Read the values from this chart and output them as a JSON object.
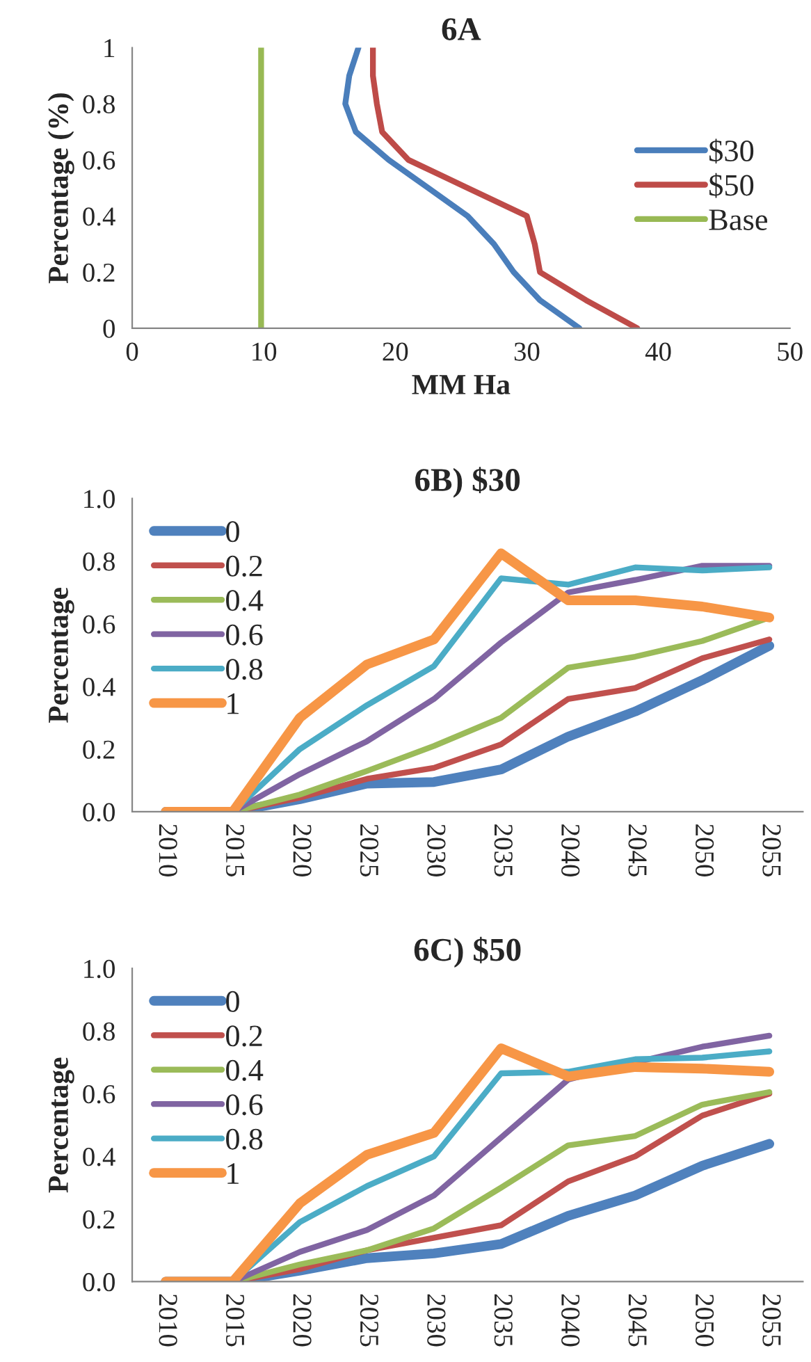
{
  "chart_data": [
    {
      "type": "line",
      "title": "6A",
      "xlabel": "MM Ha",
      "ylabel": "Percentage (%)",
      "xlim": [
        0,
        50
      ],
      "xticks": [
        0,
        10,
        20,
        30,
        40,
        50
      ],
      "ylim": [
        0,
        1
      ],
      "yticks": [
        0,
        0.2,
        0.4,
        0.6,
        0.8,
        1
      ],
      "grid": false,
      "legend": "right",
      "series": [
        {
          "name": "$30",
          "color": "#4a7ebb",
          "x": [
            34,
            31,
            29,
            27.5,
            25.5,
            22.5,
            19.5,
            17,
            16.2,
            16.5,
            17.2
          ],
          "values": [
            0,
            0.1,
            0.2,
            0.3,
            0.4,
            0.5,
            0.6,
            0.7,
            0.8,
            0.9,
            1
          ]
        },
        {
          "name": "$50",
          "color": "#be4b48",
          "x": [
            38.4,
            34.5,
            31,
            30.6,
            30,
            25.5,
            21,
            19,
            18.6,
            18.3,
            18.3
          ],
          "values": [
            0,
            0.1,
            0.2,
            0.3,
            0.4,
            0.5,
            0.6,
            0.7,
            0.8,
            0.9,
            1
          ]
        },
        {
          "name": "Base",
          "color": "#98b954",
          "x": [
            9.8,
            9.8
          ],
          "values": [
            0,
            1
          ]
        }
      ]
    },
    {
      "type": "line",
      "title": "6B) $30",
      "ylabel": "Percentage",
      "categories": [
        "2010",
        "2015",
        "2020",
        "2025",
        "2030",
        "2035",
        "2040",
        "2045",
        "2050",
        "2055"
      ],
      "ylim": [
        0,
        1
      ],
      "yticks": [
        {
          "value": 0,
          "label": "0.0"
        },
        {
          "value": 0.2,
          "label": "0.2"
        },
        {
          "value": 0.4,
          "label": "0.4"
        },
        {
          "value": 0.6,
          "label": "0.6"
        },
        {
          "value": 0.8,
          "label": "0.8"
        },
        {
          "value": 1,
          "label": "1.0"
        }
      ],
      "grid": false,
      "legend": "top left",
      "series": [
        {
          "name": "0",
          "color": "#4f81bd",
          "values": [
            0,
            0,
            0.04,
            0.09,
            0.095,
            0.135,
            0.24,
            0.32,
            0.42,
            0.53
          ]
        },
        {
          "name": "0.2",
          "color": "#c0504d",
          "values": [
            0,
            0,
            0.045,
            0.105,
            0.14,
            0.215,
            0.36,
            0.395,
            0.49,
            0.55
          ]
        },
        {
          "name": "0.4",
          "color": "#9bbb59",
          "values": [
            0,
            0,
            0.055,
            0.13,
            0.21,
            0.3,
            0.46,
            0.495,
            0.545,
            0.62
          ]
        },
        {
          "name": "0.6",
          "color": "#8064a2",
          "values": [
            0,
            0,
            0.12,
            0.225,
            0.36,
            0.54,
            0.7,
            0.74,
            0.785,
            0.785
          ]
        },
        {
          "name": "0.8",
          "color": "#4bacc6",
          "values": [
            0,
            0,
            0.2,
            0.34,
            0.465,
            0.745,
            0.725,
            0.78,
            0.77,
            0.78
          ]
        },
        {
          "name": "1",
          "color": "#f79646",
          "values": [
            0,
            0,
            0.3,
            0.47,
            0.55,
            0.825,
            0.675,
            0.675,
            0.655,
            0.62
          ]
        }
      ]
    },
    {
      "type": "line",
      "title": "6C) $50",
      "ylabel": "Percentage",
      "categories": [
        "2010",
        "2015",
        "2020",
        "2025",
        "2030",
        "2035",
        "2040",
        "2045",
        "2050",
        "2055"
      ],
      "ylim": [
        0,
        1
      ],
      "yticks": [
        {
          "value": 0,
          "label": "0.0"
        },
        {
          "value": 0.2,
          "label": "0.2"
        },
        {
          "value": 0.4,
          "label": "0.4"
        },
        {
          "value": 0.6,
          "label": "0.6"
        },
        {
          "value": 0.8,
          "label": "0.8"
        },
        {
          "value": 1,
          "label": "1.0"
        }
      ],
      "grid": false,
      "legend": "top left",
      "series": [
        {
          "name": "0",
          "color": "#4f81bd",
          "values": [
            0,
            0,
            0.035,
            0.075,
            0.09,
            0.12,
            0.21,
            0.275,
            0.37,
            0.44
          ]
        },
        {
          "name": "0.2",
          "color": "#c0504d",
          "values": [
            0,
            0,
            0.04,
            0.1,
            0.14,
            0.18,
            0.32,
            0.4,
            0.53,
            0.6
          ]
        },
        {
          "name": "0.4",
          "color": "#9bbb59",
          "values": [
            0,
            0,
            0.055,
            0.1,
            0.17,
            0.3,
            0.435,
            0.465,
            0.565,
            0.605
          ]
        },
        {
          "name": "0.6",
          "color": "#8064a2",
          "values": [
            0,
            0,
            0.095,
            0.165,
            0.275,
            0.46,
            0.645,
            0.7,
            0.75,
            0.785
          ]
        },
        {
          "name": "0.8",
          "color": "#4bacc6",
          "values": [
            0,
            0,
            0.19,
            0.305,
            0.4,
            0.665,
            0.67,
            0.71,
            0.715,
            0.735
          ]
        },
        {
          "name": "1",
          "color": "#f79646",
          "values": [
            0,
            0,
            0.25,
            0.405,
            0.475,
            0.745,
            0.655,
            0.685,
            0.68,
            0.67
          ]
        }
      ]
    }
  ]
}
